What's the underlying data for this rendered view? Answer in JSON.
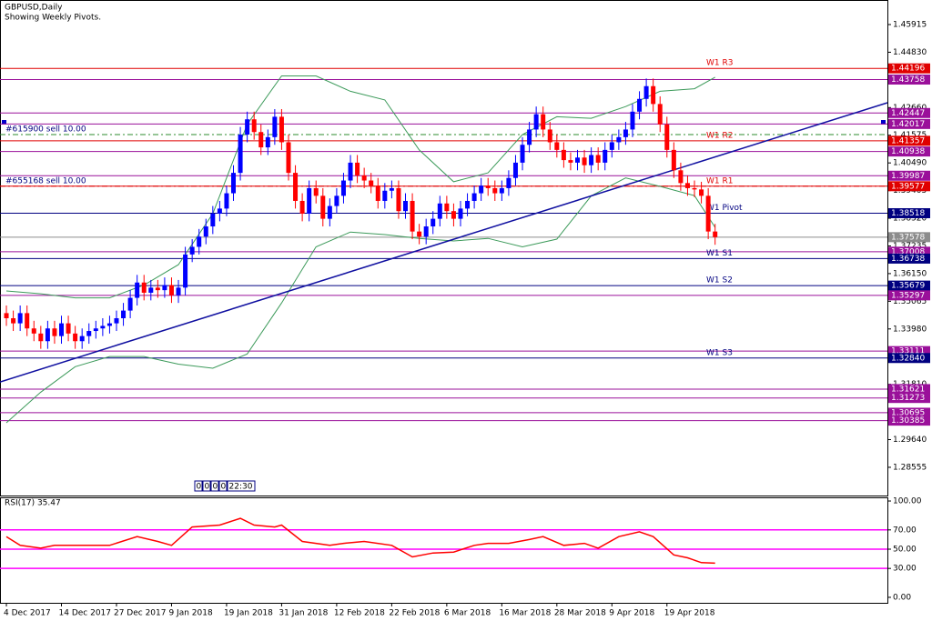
{
  "chart_data": [
    {
      "type": "candlestick",
      "title": "GBPUSD,Daily",
      "subtitle": "Showing Weekly Pivots.",
      "categories": [
        "4 Dec 2017",
        null,
        null,
        null,
        null,
        null,
        null,
        null,
        "14 Dec 2017",
        null,
        null,
        null,
        null,
        null,
        null,
        null,
        "27 Dec 2017",
        null,
        null,
        null,
        null,
        null,
        null,
        null,
        "9 Jan 2018",
        null,
        null,
        null,
        null,
        null,
        null,
        null,
        "19 Jan 2018",
        null,
        null,
        null,
        null,
        null,
        null,
        null,
        "31 Jan 2018",
        null,
        null,
        null,
        null,
        null,
        null,
        null,
        "12 Feb 2018",
        null,
        null,
        null,
        null,
        null,
        null,
        null,
        "22 Feb 2018",
        null,
        null,
        null,
        null,
        null,
        null,
        null,
        "6 Mar 2018",
        null,
        null,
        null,
        null,
        null,
        null,
        null,
        "16 Mar 2018",
        null,
        null,
        null,
        null,
        null,
        null,
        null,
        "28 Mar 2018",
        null,
        null,
        null,
        null,
        null,
        null,
        null,
        "9 Apr 2018",
        null,
        null,
        null,
        null,
        null,
        null,
        null,
        "19 Apr 2018",
        null,
        null,
        null,
        null,
        null,
        null,
        null
      ],
      "open": [
        1.346,
        1.344,
        1.342,
        1.346,
        1.34,
        1.338,
        1.335,
        1.34,
        1.337,
        1.342,
        1.338,
        1.335,
        1.337,
        1.339,
        1.34,
        1.341,
        1.342,
        1.344,
        1.347,
        1.352,
        1.358,
        1.354,
        1.356,
        1.355,
        1.357,
        1.353,
        1.356,
        1.369,
        1.372,
        1.376,
        1.38,
        1.385,
        1.387,
        1.393,
        1.401,
        1.416,
        1.422,
        1.417,
        1.411,
        1.415,
        1.423,
        1.413,
        1.401,
        1.39,
        1.385,
        1.395,
        1.392,
        1.383,
        1.388,
        1.392,
        1.398,
        1.405,
        1.4,
        1.398,
        1.396,
        1.39,
        1.394,
        1.395,
        1.386,
        1.39,
        1.378,
        1.376,
        1.38,
        1.383,
        1.389,
        1.386,
        1.383,
        1.387,
        1.39,
        1.393,
        1.396,
        1.395,
        1.393,
        1.395,
        1.399,
        1.405,
        1.412,
        1.418,
        1.424,
        1.418,
        1.413,
        1.41,
        1.406,
        1.405,
        1.407,
        1.404,
        1.408,
        1.405,
        1.41,
        1.413,
        1.415,
        1.418,
        1.425,
        1.43,
        1.435,
        1.428,
        1.42,
        1.41,
        1.402,
        1.397,
        1.395,
        1.3945,
        1.392,
        1.378
      ],
      "high": [
        1.349,
        1.347,
        1.349,
        1.349,
        1.343,
        1.341,
        1.343,
        1.343,
        1.345,
        1.345,
        1.341,
        1.34,
        1.342,
        1.343,
        1.344,
        1.345,
        1.347,
        1.35,
        1.355,
        1.361,
        1.361,
        1.359,
        1.359,
        1.36,
        1.36,
        1.359,
        1.372,
        1.375,
        1.379,
        1.383,
        1.388,
        1.39,
        1.396,
        1.404,
        1.419,
        1.425,
        1.425,
        1.42,
        1.418,
        1.426,
        1.426,
        1.416,
        1.404,
        1.393,
        1.398,
        1.398,
        1.395,
        1.391,
        1.395,
        1.401,
        1.408,
        1.408,
        1.403,
        1.401,
        1.399,
        1.397,
        1.398,
        1.398,
        1.393,
        1.393,
        1.381,
        1.383,
        1.386,
        1.392,
        1.392,
        1.389,
        1.39,
        1.393,
        1.396,
        1.399,
        1.399,
        1.398,
        1.398,
        1.402,
        1.408,
        1.415,
        1.421,
        1.427,
        1.427,
        1.421,
        1.416,
        1.413,
        1.409,
        1.41,
        1.41,
        1.411,
        1.411,
        1.413,
        1.416,
        1.418,
        1.421,
        1.428,
        1.433,
        1.438,
        1.438,
        1.431,
        1.423,
        1.413,
        1.405,
        1.4,
        1.398,
        1.3975,
        1.395,
        1.381
      ],
      "low": [
        1.341,
        1.339,
        1.339,
        1.337,
        1.335,
        1.332,
        1.332,
        1.334,
        1.334,
        1.335,
        1.332,
        1.332,
        1.334,
        1.336,
        1.337,
        1.338,
        1.339,
        1.341,
        1.344,
        1.349,
        1.351,
        1.351,
        1.352,
        1.352,
        1.35,
        1.35,
        1.353,
        1.366,
        1.369,
        1.373,
        1.377,
        1.382,
        1.384,
        1.39,
        1.398,
        1.413,
        1.414,
        1.408,
        1.408,
        1.412,
        1.41,
        1.398,
        1.387,
        1.382,
        1.382,
        1.389,
        1.38,
        1.38,
        1.385,
        1.389,
        1.395,
        1.397,
        1.395,
        1.393,
        1.387,
        1.387,
        1.391,
        1.383,
        1.383,
        1.375,
        1.373,
        1.373,
        1.377,
        1.38,
        1.383,
        1.38,
        1.38,
        1.384,
        1.387,
        1.39,
        1.392,
        1.39,
        1.39,
        1.392,
        1.396,
        1.402,
        1.409,
        1.415,
        1.415,
        1.41,
        1.407,
        1.403,
        1.402,
        1.402,
        1.401,
        1.401,
        1.402,
        1.402,
        1.407,
        1.41,
        1.412,
        1.415,
        1.422,
        1.427,
        1.425,
        1.417,
        1.407,
        1.399,
        1.394,
        1.392,
        1.3915,
        1.389,
        1.375,
        1.3728
      ],
      "close": [
        1.344,
        1.342,
        1.346,
        1.34,
        1.338,
        1.335,
        1.34,
        1.337,
        1.342,
        1.338,
        1.335,
        1.337,
        1.339,
        1.34,
        1.341,
        1.342,
        1.344,
        1.347,
        1.352,
        1.358,
        1.354,
        1.356,
        1.355,
        1.357,
        1.353,
        1.356,
        1.369,
        1.372,
        1.376,
        1.38,
        1.385,
        1.387,
        1.393,
        1.401,
        1.416,
        1.422,
        1.417,
        1.411,
        1.415,
        1.423,
        1.413,
        1.401,
        1.39,
        1.385,
        1.395,
        1.392,
        1.383,
        1.388,
        1.392,
        1.398,
        1.405,
        1.4,
        1.398,
        1.396,
        1.39,
        1.394,
        1.395,
        1.386,
        1.39,
        1.378,
        1.376,
        1.38,
        1.383,
        1.389,
        1.386,
        1.383,
        1.387,
        1.39,
        1.393,
        1.396,
        1.395,
        1.393,
        1.395,
        1.399,
        1.405,
        1.412,
        1.418,
        1.424,
        1.418,
        1.413,
        1.41,
        1.406,
        1.405,
        1.407,
        1.404,
        1.408,
        1.405,
        1.41,
        1.413,
        1.415,
        1.418,
        1.425,
        1.43,
        1.435,
        1.428,
        1.42,
        1.41,
        1.402,
        1.397,
        1.395,
        1.3945,
        1.392,
        1.378,
        1.3758
      ],
      "up_color": "#0000ff",
      "down_color": "#ff0000",
      "xlim": [
        -0.93,
        128.04
      ],
      "ylim": [
        1.27448,
        1.46878
      ],
      "yticks": [
        1.45915,
        {
          "value": 1.4483,
          "label": "1.44830"
        },
        {
          "value": 1.4266,
          "label": "1.42660"
        },
        1.41575,
        {
          "value": 1.4049,
          "label": "1.40490"
        },
        1.39405,
        {
          "value": 1.3832,
          "label": "1.38320"
        },
        1.37235,
        {
          "value": 1.3615,
          "label": "1.36150"
        },
        1.35065,
        {
          "value": 1.3398,
          "label": "1.33980"
        },
        {
          "value": 1.3181,
          "label": "1.31810"
        },
        {
          "value": 1.2964,
          "label": "1.29640"
        },
        1.28555
      ],
      "levels": [
        {
          "value": 1.44196,
          "color": "#e00000",
          "name": "W1 R3"
        },
        {
          "value": 1.43758,
          "color": "#9a109a"
        },
        {
          "value": 1.42447,
          "color": "#9a109a"
        },
        {
          "value": 1.42017,
          "color": "#9a109a"
        },
        {
          "value": 1.41357,
          "color": "#e00000",
          "name": "W1 R2"
        },
        {
          "value": 1.40938,
          "color": "#9a109a"
        },
        {
          "value": 1.39987,
          "color": "#9a109a"
        },
        {
          "value": 1.39577,
          "color": "#e00000",
          "name": "W1 R1"
        },
        {
          "value": 1.38518,
          "color": "#000080",
          "name": "W1 Pivot"
        },
        {
          "value": 1.37578,
          "color": "#8c8c8c"
        },
        {
          "value": 1.37008,
          "color": "#9a109a"
        },
        {
          "value": 1.36738,
          "color": "#000080",
          "name": "W1 S1"
        },
        {
          "value": 1.35679,
          "color": "#000080",
          "name": "W1 S2"
        },
        {
          "value": 1.35297,
          "color": "#9a109a"
        },
        {
          "value": 1.33111,
          "color": "#9a109a"
        },
        {
          "value": 1.3284,
          "label": "1.32840",
          "color": "#000080",
          "name": "W1 S3"
        },
        {
          "value": 1.31621,
          "color": "#9a109a"
        },
        {
          "value": 1.31273,
          "color": "#9a109a"
        },
        {
          "value": 1.30695,
          "color": "#9a109a"
        },
        {
          "value": 1.30385,
          "color": "#9a109a"
        }
      ],
      "orders": [
        {
          "value": 1.41601,
          "label": "#615900 sell 10.00",
          "color": "#2e8b2e"
        },
        {
          "value": 1.39577,
          "label": "#655168 sell 10.00",
          "color": "#e00000"
        }
      ],
      "bands": {
        "color": "#3c9a5a",
        "x": [
          0,
          5,
          10,
          15,
          20,
          25,
          30,
          35,
          40,
          45,
          50,
          55,
          60,
          65,
          70,
          75,
          80,
          85,
          90,
          95,
          100,
          103
        ],
        "upper": [
          1.3547,
          1.3536,
          1.352,
          1.352,
          1.357,
          1.365,
          1.385,
          1.42,
          1.439,
          1.439,
          1.433,
          1.4296,
          1.41,
          1.3975,
          1.401,
          1.416,
          1.423,
          1.4224,
          1.427,
          1.433,
          1.434,
          1.4385
        ],
        "lower": [
          1.303,
          1.315,
          1.325,
          1.329,
          1.329,
          1.326,
          1.3244,
          1.33,
          1.35,
          1.372,
          1.3778,
          1.3768,
          1.3753,
          1.3743,
          1.3753,
          1.372,
          1.375,
          1.392,
          1.399,
          1.3957,
          1.3921,
          1.3796
        ]
      },
      "trendline": {
        "color": "#1010a0",
        "x": [
          -0.93,
          128.04
        ],
        "y": [
          1.319,
          1.4285
        ]
      },
      "timer": [
        "0",
        "0",
        "0",
        "0",
        "22:30"
      ]
    },
    {
      "type": "line",
      "title": "RSI(17) 35.47",
      "color": "#ff0000",
      "x": [
        0,
        2,
        5,
        7,
        11,
        15,
        19,
        22,
        24,
        27,
        31,
        34,
        36,
        39,
        40,
        43,
        47,
        49,
        52,
        56,
        59,
        62,
        65,
        68,
        70,
        73,
        76,
        78,
        81,
        84,
        86,
        89,
        92,
        94,
        97,
        99,
        101,
        103
      ],
      "values": [
        63,
        54,
        51,
        54,
        54,
        54,
        63,
        58,
        54,
        73,
        75,
        82,
        75,
        73,
        75,
        58,
        54,
        56,
        58,
        54,
        42,
        46,
        47,
        54,
        56,
        56,
        60,
        63,
        54,
        56,
        51,
        63,
        68,
        63,
        44,
        41,
        36,
        35.47
      ],
      "xlim": [
        -0.93,
        128.04
      ],
      "ylim": [
        -5.7,
        103.8
      ],
      "yticks": [
        {
          "value": 100,
          "label": "100.00"
        },
        {
          "value": 70,
          "label": "70.00"
        },
        {
          "value": 50,
          "label": "50.00"
        },
        {
          "value": 30,
          "label": "30.00"
        },
        {
          "value": 0,
          "label": "0.00"
        }
      ],
      "levels": [
        70,
        50,
        30
      ],
      "level_color": "#ff00ff"
    }
  ]
}
